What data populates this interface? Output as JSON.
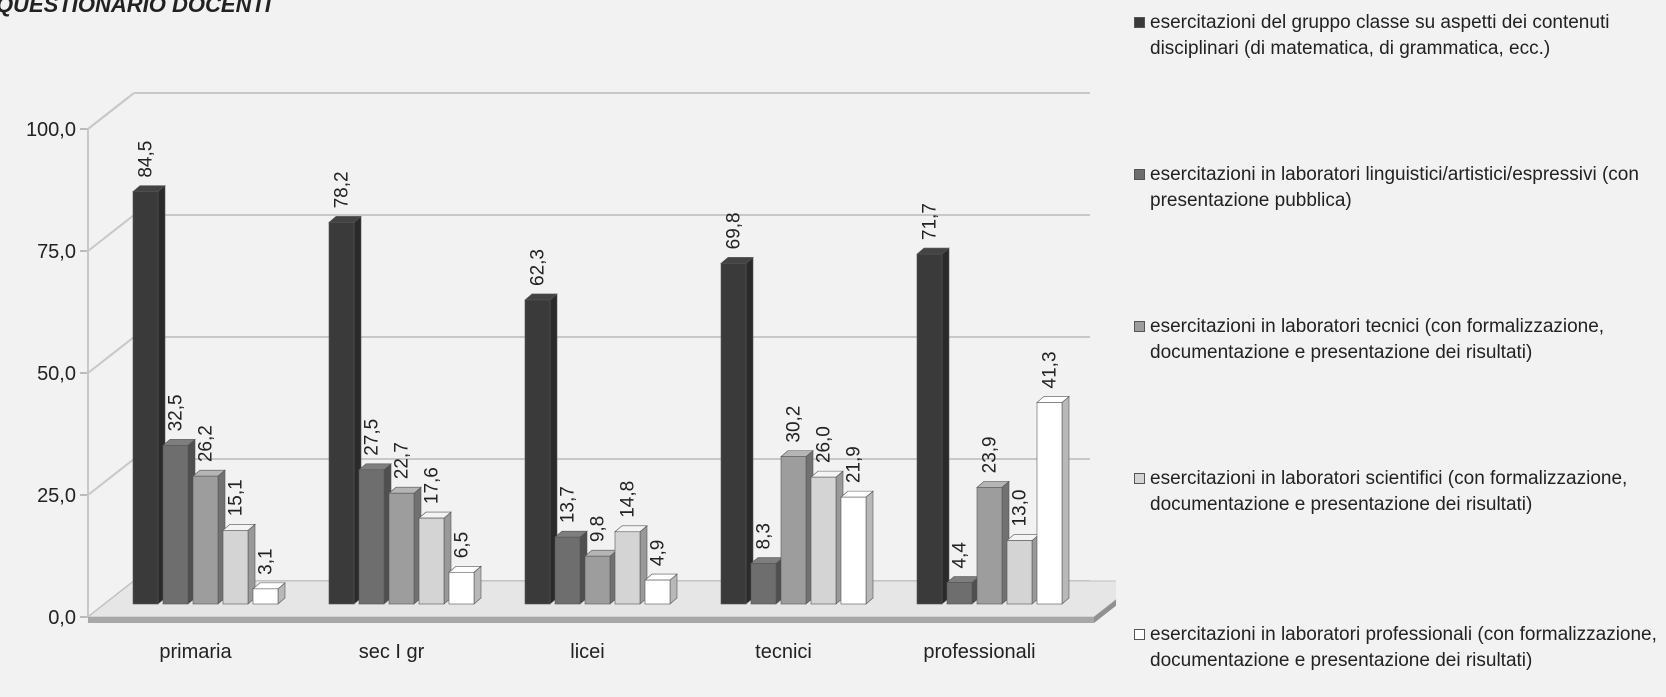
{
  "page": {
    "title": "QUESTIONARIO DOCENTI"
  },
  "chart_data": {
    "type": "bar",
    "variant": "3d-clustered-column",
    "categories": [
      "primaria",
      "sec I gr",
      "licei",
      "tecnici",
      "professionali"
    ],
    "series": [
      {
        "name": "esercitazioni del gruppo classe su aspetti dei contenuti disciplinari (di matematica, di grammatica, ecc.)",
        "values": [
          84.5,
          78.2,
          62.3,
          69.8,
          71.7
        ],
        "color": "#3a3a3a"
      },
      {
        "name": "esercitazioni in laboratori linguistici/artistici/espressivi (con presentazione pubblica)",
        "values": [
          32.5,
          27.5,
          13.7,
          8.3,
          4.4
        ],
        "color": "#6e6e6e"
      },
      {
        "name": "esercitazioni in laboratori tecnici (con formalizzazione, documentazione e presentazione dei risultati)",
        "values": [
          26.2,
          22.7,
          9.8,
          30.2,
          23.9
        ],
        "color": "#9d9d9d"
      },
      {
        "name": "esercitazioni in laboratori scientifici (con formalizzazione, documentazione e presentazione dei risultati)",
        "values": [
          15.1,
          17.6,
          14.8,
          26.0,
          13.0
        ],
        "color": "#d4d4d4"
      },
      {
        "name": "esercitazioni in laboratori professionali (con formalizzazione, documentazione e presentazione dei risultati)",
        "values": [
          3.1,
          6.5,
          4.9,
          21.9,
          41.3
        ],
        "color": "#ffffff"
      }
    ],
    "data_labels": [
      [
        "84,5",
        "32,5",
        "26,2",
        "15,1",
        "3,1"
      ],
      [
        "78,2",
        "27,5",
        "22,7",
        "17,6",
        "6,5"
      ],
      [
        "62,3",
        "13,7",
        "9,8",
        "14,8",
        "4,9"
      ],
      [
        "69,8",
        "8,3",
        "30,2",
        "26,0",
        "21,9"
      ],
      [
        "71,7",
        "4,4",
        "23,9",
        "13,0",
        "41,3"
      ]
    ],
    "yticks": [
      0,
      25,
      50,
      75,
      100
    ],
    "ytick_labels": [
      "0,0",
      "25,0",
      "50,0",
      "75,0",
      "100,0"
    ],
    "ylim": [
      0,
      100
    ],
    "grid": true,
    "legend_position": "right",
    "xlabel": "",
    "ylabel": ""
  }
}
